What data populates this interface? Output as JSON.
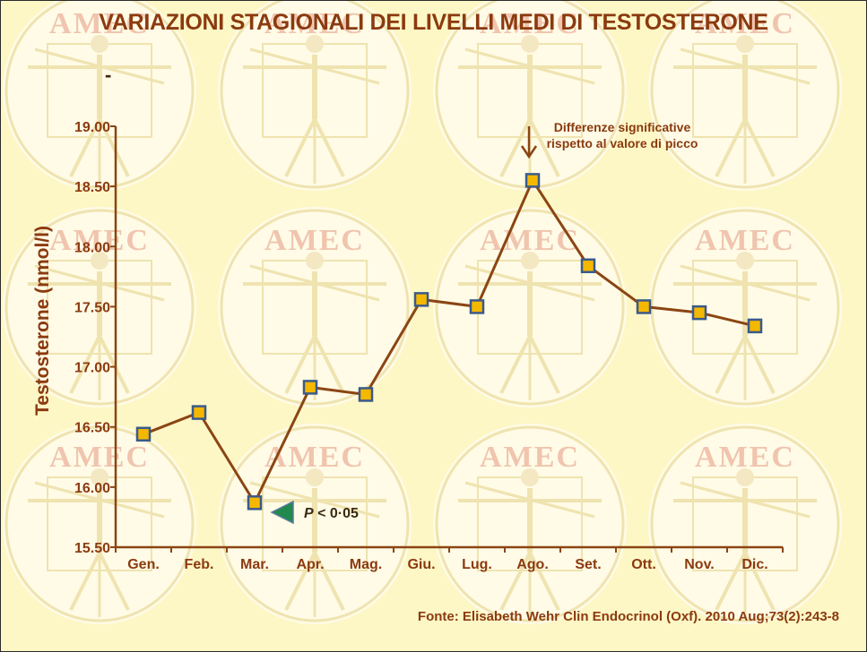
{
  "title": "VARIAZIONI STAGIONALI DEI LIVELLI MEDI DI TESTOSTERONE",
  "top_mark": "-",
  "y_axis_label": "Testosterone (nmol/l)",
  "source": "Fonte: Elisabeth Wehr Clin Endocrinol (Oxf). 2010 Aug;73(2):243-8",
  "watermark": "AMEC",
  "annotation": {
    "peak_text": "Differenze significative rispetto al valore di picco",
    "p_value_prefix": "P",
    "p_value_rest": " < 0·05",
    "arrow_icon": "down-arrow-icon",
    "pointer_icon": "left-triangle-pointer-icon"
  },
  "colors": {
    "line": "#8b4513",
    "marker_fill": "#f5b800",
    "marker_stroke": "#3a5a8a",
    "axis": "#8b4513",
    "text": "#8b3a0f",
    "background": "#fdf7c6",
    "pointer": "#1f8a4c"
  },
  "chart_data": {
    "type": "line",
    "categories": [
      "Gen.",
      "Feb.",
      "Mar.",
      "Apr.",
      "Mag.",
      "Giu.",
      "Lug.",
      "Ago.",
      "Set.",
      "Ott.",
      "Nov.",
      "Dic."
    ],
    "series": [
      {
        "values": [
          16.44,
          16.62,
          15.87,
          16.83,
          16.77,
          17.56,
          17.5,
          18.55,
          17.84,
          17.5,
          17.45,
          17.34
        ]
      }
    ],
    "ylim": [
      15.5,
      19.0
    ],
    "yticks": [
      "15.50",
      "16.00",
      "16.50",
      "17.00",
      "17.50",
      "18.00",
      "18.50",
      "19.00"
    ],
    "ylabel": "Testosterone (nmol/l)",
    "xlabel": "",
    "grid": false,
    "legend": "none"
  }
}
